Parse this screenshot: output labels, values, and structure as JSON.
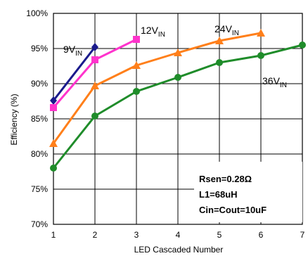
{
  "chart_data": {
    "type": "line",
    "title": "",
    "xlabel": "LED Cascaded Number",
    "ylabel": "Efficiency (%)",
    "xlim": [
      1,
      7
    ],
    "ylim": [
      70,
      100
    ],
    "x_ticks": [
      "1",
      "2",
      "3",
      "4",
      "5",
      "6",
      "7"
    ],
    "y_ticks": [
      "70%",
      "75%",
      "80%",
      "85%",
      "90%",
      "95%",
      "100%"
    ],
    "grid": true,
    "series": [
      {
        "name": "9V",
        "name_sub": "IN",
        "color": "#1a1a8c",
        "marker": "diamond",
        "x": [
          1,
          2
        ],
        "y": [
          87.6,
          95.2
        ]
      },
      {
        "name": "12V",
        "name_sub": "IN",
        "color": "#ff33cc",
        "marker": "square",
        "x": [
          1,
          2,
          3
        ],
        "y": [
          86.6,
          93.4,
          96.3
        ]
      },
      {
        "name": "24V",
        "name_sub": "IN",
        "color": "#ff7f1a",
        "marker": "triangle",
        "x": [
          1,
          2,
          3,
          4,
          5,
          6
        ],
        "y": [
          81.5,
          89.7,
          92.6,
          94.4,
          96.1,
          97.2
        ]
      },
      {
        "name": "36V",
        "name_sub": "IN",
        "color": "#1f8c2a",
        "marker": "circle",
        "x": [
          1,
          2,
          3,
          4,
          5,
          6,
          7
        ],
        "y": [
          78.0,
          85.4,
          88.9,
          90.9,
          93.0,
          94.0,
          95.5
        ]
      }
    ],
    "annotations": [
      "Rsen=0.28Ω",
      "L1=68uH",
      "Cin=Cout=10uF"
    ]
  }
}
